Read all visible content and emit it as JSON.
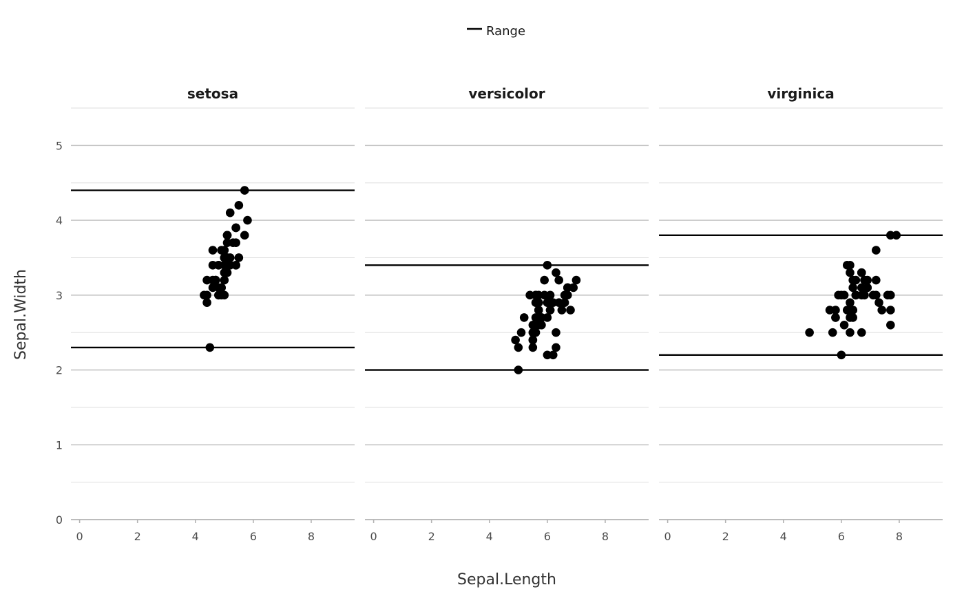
{
  "chart_data": {
    "type": "scatter",
    "xlabel": "Sepal.Length",
    "ylabel": "Sepal.Width",
    "xlim": [
      -0.3,
      9.5
    ],
    "ylim": [
      0,
      5.5
    ],
    "x_ticks": [
      0,
      2,
      4,
      6,
      8
    ],
    "y_ticks": [
      0,
      1,
      2,
      3,
      4,
      5
    ],
    "grid": true,
    "legend": {
      "position": "top",
      "entries": [
        {
          "label": "Range",
          "color": "#000000",
          "shape": "line"
        }
      ]
    },
    "point_color": "#000000",
    "panels": [
      {
        "name": "setosa",
        "range_lines": [
          2.3,
          4.4
        ],
        "points": [
          [
            5.1,
            3.5
          ],
          [
            4.9,
            3.0
          ],
          [
            4.7,
            3.2
          ],
          [
            4.6,
            3.1
          ],
          [
            5.0,
            3.6
          ],
          [
            5.4,
            3.9
          ],
          [
            4.6,
            3.4
          ],
          [
            5.0,
            3.4
          ],
          [
            4.4,
            2.9
          ],
          [
            4.9,
            3.1
          ],
          [
            5.4,
            3.7
          ],
          [
            4.8,
            3.4
          ],
          [
            4.8,
            3.0
          ],
          [
            4.3,
            3.0
          ],
          [
            5.8,
            4.0
          ],
          [
            5.7,
            4.4
          ],
          [
            5.4,
            3.9
          ],
          [
            5.1,
            3.5
          ],
          [
            5.7,
            3.8
          ],
          [
            5.1,
            3.8
          ],
          [
            5.4,
            3.4
          ],
          [
            5.1,
            3.7
          ],
          [
            4.6,
            3.6
          ],
          [
            5.1,
            3.3
          ],
          [
            4.8,
            3.4
          ],
          [
            5.0,
            3.0
          ],
          [
            5.0,
            3.4
          ],
          [
            5.2,
            3.5
          ],
          [
            5.2,
            3.4
          ],
          [
            4.7,
            3.2
          ],
          [
            4.8,
            3.1
          ],
          [
            5.4,
            3.4
          ],
          [
            5.2,
            4.1
          ],
          [
            5.5,
            4.2
          ],
          [
            4.9,
            3.1
          ],
          [
            5.0,
            3.2
          ],
          [
            5.5,
            3.5
          ],
          [
            4.9,
            3.6
          ],
          [
            4.4,
            3.0
          ],
          [
            5.1,
            3.4
          ],
          [
            5.0,
            3.5
          ],
          [
            4.5,
            2.3
          ],
          [
            4.4,
            3.2
          ],
          [
            5.0,
            3.5
          ],
          [
            5.1,
            3.8
          ],
          [
            4.8,
            3.0
          ],
          [
            5.1,
            3.8
          ],
          [
            4.6,
            3.2
          ],
          [
            5.3,
            3.7
          ],
          [
            5.0,
            3.3
          ]
        ]
      },
      {
        "name": "versicolor",
        "range_lines": [
          2.0,
          3.4
        ],
        "points": [
          [
            7.0,
            3.2
          ],
          [
            6.4,
            3.2
          ],
          [
            6.9,
            3.1
          ],
          [
            5.5,
            2.3
          ],
          [
            6.5,
            2.8
          ],
          [
            5.7,
            2.8
          ],
          [
            6.3,
            3.3
          ],
          [
            4.9,
            2.4
          ],
          [
            6.6,
            2.9
          ],
          [
            5.2,
            2.7
          ],
          [
            5.0,
            2.0
          ],
          [
            5.9,
            3.0
          ],
          [
            6.0,
            2.2
          ],
          [
            6.1,
            2.9
          ],
          [
            5.6,
            2.9
          ],
          [
            6.7,
            3.1
          ],
          [
            5.6,
            3.0
          ],
          [
            5.8,
            2.7
          ],
          [
            6.2,
            2.2
          ],
          [
            5.6,
            2.5
          ],
          [
            5.9,
            3.2
          ],
          [
            6.1,
            2.8
          ],
          [
            6.3,
            2.5
          ],
          [
            6.1,
            2.8
          ],
          [
            6.4,
            2.9
          ],
          [
            6.6,
            3.0
          ],
          [
            6.8,
            2.8
          ],
          [
            6.7,
            3.0
          ],
          [
            6.0,
            2.9
          ],
          [
            5.7,
            2.6
          ],
          [
            5.5,
            2.4
          ],
          [
            5.5,
            2.4
          ],
          [
            5.8,
            2.7
          ],
          [
            6.0,
            2.7
          ],
          [
            5.4,
            3.0
          ],
          [
            6.0,
            3.4
          ],
          [
            6.7,
            3.1
          ],
          [
            6.3,
            2.3
          ],
          [
            5.6,
            3.0
          ],
          [
            5.5,
            2.5
          ],
          [
            5.5,
            2.6
          ],
          [
            6.1,
            3.0
          ],
          [
            5.8,
            2.6
          ],
          [
            5.0,
            2.3
          ],
          [
            5.6,
            2.7
          ],
          [
            5.7,
            3.0
          ],
          [
            5.7,
            2.9
          ],
          [
            6.2,
            2.9
          ],
          [
            5.1,
            2.5
          ],
          [
            5.7,
            2.8
          ]
        ]
      },
      {
        "name": "virginica",
        "range_lines": [
          2.2,
          3.8
        ],
        "points": [
          [
            6.3,
            3.3
          ],
          [
            5.8,
            2.7
          ],
          [
            7.1,
            3.0
          ],
          [
            6.3,
            2.9
          ],
          [
            6.5,
            3.0
          ],
          [
            7.6,
            3.0
          ],
          [
            4.9,
            2.5
          ],
          [
            7.3,
            2.9
          ],
          [
            6.7,
            2.5
          ],
          [
            7.2,
            3.6
          ],
          [
            6.5,
            3.2
          ],
          [
            6.4,
            2.7
          ],
          [
            6.8,
            3.0
          ],
          [
            5.7,
            2.5
          ],
          [
            5.8,
            2.8
          ],
          [
            6.4,
            3.2
          ],
          [
            6.5,
            3.0
          ],
          [
            7.7,
            3.8
          ],
          [
            7.7,
            2.6
          ],
          [
            6.0,
            2.2
          ],
          [
            6.9,
            3.2
          ],
          [
            5.6,
            2.8
          ],
          [
            7.7,
            2.8
          ],
          [
            6.3,
            2.7
          ],
          [
            6.7,
            3.3
          ],
          [
            7.2,
            3.2
          ],
          [
            6.2,
            2.8
          ],
          [
            6.1,
            3.0
          ],
          [
            6.4,
            2.8
          ],
          [
            7.2,
            3.0
          ],
          [
            7.4,
            2.8
          ],
          [
            7.9,
            3.8
          ],
          [
            6.4,
            2.8
          ],
          [
            6.3,
            2.8
          ],
          [
            6.1,
            2.6
          ],
          [
            7.7,
            3.0
          ],
          [
            6.3,
            3.4
          ],
          [
            6.4,
            3.1
          ],
          [
            6.0,
            3.0
          ],
          [
            6.9,
            3.1
          ],
          [
            6.7,
            3.1
          ],
          [
            6.9,
            3.1
          ],
          [
            5.8,
            2.7
          ],
          [
            6.8,
            3.2
          ],
          [
            6.7,
            3.3
          ],
          [
            6.7,
            3.0
          ],
          [
            6.3,
            2.5
          ],
          [
            6.5,
            3.0
          ],
          [
            6.2,
            3.4
          ],
          [
            5.9,
            3.0
          ]
        ]
      }
    ]
  }
}
